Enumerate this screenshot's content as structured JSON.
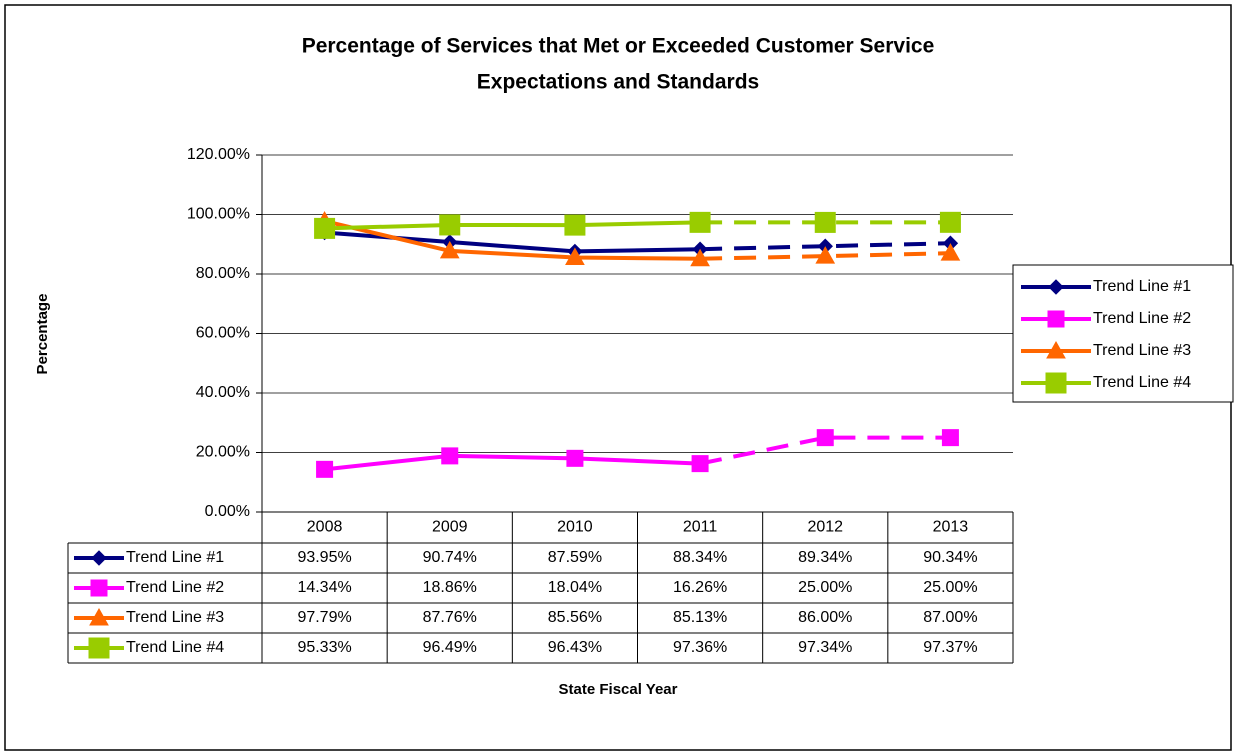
{
  "chart_data": {
    "type": "line",
    "title": [
      "Percentage of Services that Met or Exceeded Customer Service",
      "Expectations and Standards"
    ],
    "y_label": "Percentage",
    "x_label": "State Fiscal Year",
    "categories": [
      "2008",
      "2009",
      "2010",
      "2011",
      "2012",
      "2013"
    ],
    "dashed_from": "2011",
    "ylim": [
      0,
      120
    ],
    "yticks": [
      {
        "value": 0,
        "label": "0.00%"
      },
      {
        "value": 20,
        "label": "20.00%"
      },
      {
        "value": 40,
        "label": "40.00%"
      },
      {
        "value": 60,
        "label": "60.00%"
      },
      {
        "value": 80,
        "label": "80.00%"
      },
      {
        "value": 100,
        "label": "100.00%"
      },
      {
        "value": 120,
        "label": "120.00%"
      }
    ],
    "grid": true,
    "legend": "right",
    "data_table": true,
    "series": [
      {
        "name": "Trend Line #1",
        "color": "#000080",
        "marker": "diamond",
        "values": [
          93.95,
          90.74,
          87.59,
          88.34,
          89.34,
          90.34
        ],
        "value_labels": [
          "93.95%",
          "90.74%",
          "87.59%",
          "88.34%",
          "89.34%",
          "90.34%"
        ]
      },
      {
        "name": "Trend Line #2",
        "color": "#ff00ff",
        "marker": "square",
        "values": [
          14.34,
          18.86,
          18.04,
          16.26,
          25.0,
          25.0
        ],
        "value_labels": [
          "14.34%",
          "18.86%",
          "18.04%",
          "16.26%",
          "25.00%",
          "25.00%"
        ]
      },
      {
        "name": "Trend Line #3",
        "color": "#ff6600",
        "marker": "triangle",
        "values": [
          97.79,
          87.76,
          85.56,
          85.13,
          86.0,
          87.0
        ],
        "value_labels": [
          "97.79%",
          "87.76%",
          "85.56%",
          "85.13%",
          "86.00%",
          "87.00%"
        ]
      },
      {
        "name": "Trend Line #4",
        "color": "#99cc00",
        "marker": "big-square",
        "values": [
          95.33,
          96.49,
          96.43,
          97.36,
          97.34,
          97.37
        ],
        "value_labels": [
          "95.33%",
          "96.49%",
          "96.43%",
          "97.36%",
          "97.34%",
          "97.37%"
        ]
      }
    ]
  }
}
